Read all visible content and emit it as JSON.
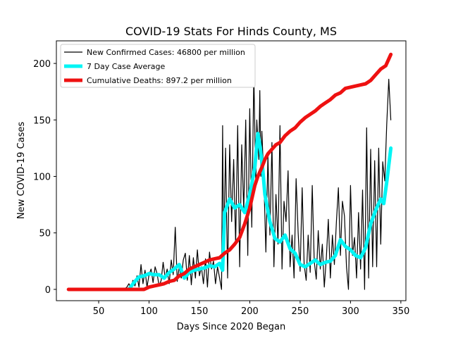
{
  "chart_data": {
    "type": "line",
    "title": "COVID-19 Stats For Hinds County, MS",
    "xlabel": "Days Since 2020 Began",
    "ylabel": "New COVID-19 Cases",
    "xlim": [
      8,
      355
    ],
    "ylim": [
      -10,
      220
    ],
    "xticks": [
      50,
      100,
      150,
      200,
      250,
      300,
      350
    ],
    "yticks": [
      0,
      50,
      100,
      150,
      200
    ],
    "grid": false,
    "legend_position": "top-left",
    "series": [
      {
        "name": "New Confirmed Cases: 46800 per million",
        "color": "#000000",
        "x": [
          20,
          30,
          40,
          50,
          60,
          70,
          75,
          78,
          80,
          82,
          84,
          86,
          88,
          90,
          92,
          94,
          96,
          98,
          100,
          102,
          104,
          106,
          108,
          110,
          112,
          114,
          116,
          118,
          120,
          122,
          124,
          126,
          128,
          130,
          132,
          134,
          136,
          138,
          140,
          142,
          144,
          146,
          148,
          150,
          152,
          154,
          156,
          158,
          160,
          162,
          164,
          166,
          168,
          170,
          172,
          173,
          174,
          176,
          178,
          180,
          182,
          184,
          186,
          188,
          190,
          192,
          194,
          196,
          198,
          200,
          202,
          204,
          206,
          207,
          208,
          209,
          210,
          211,
          212,
          214,
          216,
          218,
          220,
          222,
          224,
          226,
          228,
          230,
          232,
          234,
          236,
          238,
          240,
          242,
          244,
          246,
          248,
          250,
          252,
          254,
          256,
          258,
          260,
          262,
          264,
          266,
          268,
          270,
          272,
          274,
          276,
          278,
          280,
          282,
          284,
          286,
          288,
          290,
          292,
          294,
          296,
          298,
          300,
          302,
          304,
          306,
          308,
          310,
          312,
          314,
          316,
          318,
          320,
          322,
          324,
          326,
          328,
          330,
          332,
          334,
          336,
          338,
          340
        ],
        "y": [
          0,
          0,
          0,
          0,
          0,
          0,
          0,
          2,
          5,
          1,
          8,
          3,
          12,
          2,
          22,
          5,
          17,
          2,
          13,
          18,
          6,
          20,
          14,
          3,
          8,
          24,
          10,
          18,
          5,
          26,
          13,
          55,
          7,
          20,
          10,
          26,
          32,
          8,
          30,
          4,
          28,
          10,
          35,
          12,
          20,
          5,
          27,
          2,
          33,
          18,
          25,
          5,
          20,
          10,
          0,
          145,
          30,
          125,
          10,
          128,
          60,
          115,
          40,
          145,
          20,
          128,
          70,
          150,
          30,
          160,
          55,
          191,
          92,
          150,
          132,
          115,
          176,
          100,
          140,
          95,
          33,
          118,
          48,
          130,
          20,
          84,
          40,
          145,
          18,
          78,
          60,
          105,
          20,
          48,
          10,
          98,
          50,
          16,
          90,
          22,
          8,
          48,
          15,
          92,
          25,
          9,
          52,
          18,
          40,
          2,
          28,
          62,
          10,
          48,
          22,
          60,
          90,
          30,
          78,
          65,
          20,
          0,
          92,
          30,
          46,
          10,
          68,
          18,
          88,
          0,
          143,
          10,
          124,
          20,
          114,
          20,
          125,
          40,
          113,
          96,
          146,
          186,
          150
        ]
      },
      {
        "name": "7 Day Case Average",
        "color": "#00f5f5",
        "x": [
          80,
          85,
          90,
          95,
          100,
          105,
          110,
          115,
          120,
          125,
          130,
          135,
          140,
          145,
          150,
          155,
          160,
          165,
          170,
          173,
          175,
          180,
          185,
          190,
          195,
          200,
          205,
          208,
          210,
          213,
          215,
          220,
          225,
          230,
          235,
          240,
          245,
          250,
          255,
          260,
          265,
          270,
          275,
          280,
          285,
          290,
          295,
          300,
          305,
          310,
          315,
          320,
          325,
          330,
          333,
          336,
          340
        ],
        "y": [
          0,
          6,
          11,
          12,
          14,
          13,
          13,
          10,
          15,
          18,
          22,
          10,
          15,
          17,
          18,
          19,
          21,
          20,
          23,
          17,
          68,
          80,
          72,
          75,
          68,
          84,
          108,
          138,
          128,
          105,
          84,
          60,
          45,
          42,
          48,
          36,
          32,
          22,
          20,
          23,
          26,
          22,
          24,
          25,
          30,
          44,
          38,
          35,
          30,
          28,
          37,
          58,
          70,
          80,
          76,
          95,
          125
        ]
      },
      {
        "name": "Cumulative Deaths: 897.2 per million",
        "color": "#ee1111",
        "x": [
          20,
          40,
          60,
          80,
          90,
          95,
          100,
          105,
          110,
          115,
          120,
          125,
          130,
          135,
          140,
          145,
          150,
          155,
          160,
          165,
          170,
          175,
          180,
          185,
          190,
          195,
          200,
          205,
          208,
          212,
          215,
          218,
          222,
          226,
          230,
          235,
          240,
          245,
          250,
          255,
          260,
          265,
          270,
          275,
          280,
          285,
          290,
          295,
          300,
          305,
          310,
          315,
          320,
          325,
          330,
          335,
          340
        ],
        "y": [
          0,
          0,
          0,
          0,
          0,
          0,
          2,
          3,
          4,
          5,
          7,
          8,
          12,
          14,
          18,
          20,
          22,
          24,
          26,
          27,
          28,
          32,
          35,
          40,
          46,
          58,
          72,
          92,
          100,
          108,
          115,
          120,
          124,
          128,
          130,
          136,
          140,
          143,
          148,
          152,
          155,
          158,
          162,
          165,
          168,
          172,
          174,
          178,
          179,
          180,
          181,
          182,
          185,
          190,
          195,
          198,
          208
        ]
      }
    ]
  }
}
